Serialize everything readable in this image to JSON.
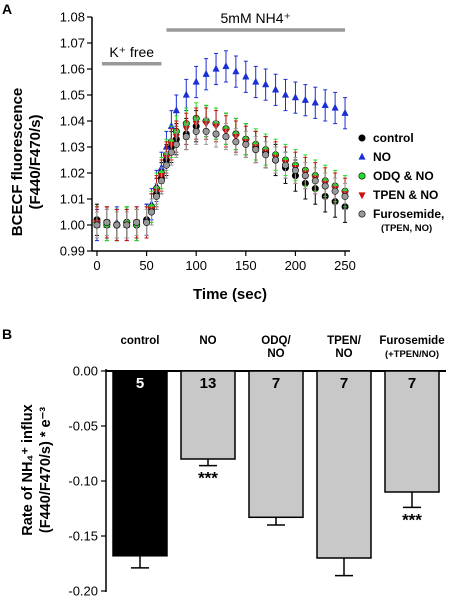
{
  "chart_data": [
    {
      "panel": "A",
      "type": "scatter",
      "xlabel": "Time (sec)",
      "ylabel_lines": [
        "BCECF fluorescence",
        "(F440/F470/s)"
      ],
      "xlim": [
        -5,
        255
      ],
      "ylim": [
        0.99,
        1.08
      ],
      "xticks": [
        0,
        50,
        100,
        150,
        200,
        250
      ],
      "yticks": [
        0.99,
        1.0,
        1.01,
        1.02,
        1.03,
        1.04,
        1.05,
        1.06,
        1.07,
        1.08
      ],
      "annotations": [
        {
          "text": "K⁺ free",
          "x_start": 5,
          "x_end": 65,
          "y": 1.062
        },
        {
          "text": "5mM NH4⁺",
          "x_start": 70,
          "x_end": 250,
          "y": 1.075
        }
      ],
      "legend_position": "right",
      "series": [
        {
          "name": "control",
          "color": "#000000",
          "marker": "circle",
          "error": 0.006,
          "points": [
            [
              0,
              1.002
            ],
            [
              10,
              1.001
            ],
            [
              20,
              1.0
            ],
            [
              30,
              1.001
            ],
            [
              40,
              1.0
            ],
            [
              50,
              1.002
            ],
            [
              55,
              1.006
            ],
            [
              60,
              1.012
            ],
            [
              65,
              1.018
            ],
            [
              70,
              1.025
            ],
            [
              75,
              1.03
            ],
            [
              80,
              1.033
            ],
            [
              90,
              1.035
            ],
            [
              100,
              1.038
            ],
            [
              110,
              1.04
            ],
            [
              120,
              1.039
            ],
            [
              130,
              1.037
            ],
            [
              140,
              1.035
            ],
            [
              150,
              1.033
            ],
            [
              160,
              1.03
            ],
            [
              170,
              1.028
            ],
            [
              180,
              1.025
            ],
            [
              190,
              1.022
            ],
            [
              200,
              1.019
            ],
            [
              210,
              1.016
            ],
            [
              220,
              1.014
            ],
            [
              230,
              1.011
            ],
            [
              240,
              1.009
            ],
            [
              250,
              1.007
            ]
          ]
        },
        {
          "name": "NO",
          "color": "#1a2fd6",
          "marker": "triangle-up",
          "error": 0.006,
          "points": [
            [
              0,
              1.0
            ],
            [
              10,
              1.0
            ],
            [
              20,
              1.001
            ],
            [
              30,
              1.0
            ],
            [
              40,
              1.001
            ],
            [
              50,
              1.002
            ],
            [
              55,
              1.008
            ],
            [
              60,
              1.015
            ],
            [
              65,
              1.022
            ],
            [
              70,
              1.03
            ],
            [
              75,
              1.038
            ],
            [
              80,
              1.044
            ],
            [
              90,
              1.05
            ],
            [
              100,
              1.055
            ],
            [
              110,
              1.058
            ],
            [
              120,
              1.06
            ],
            [
              130,
              1.061
            ],
            [
              140,
              1.059
            ],
            [
              150,
              1.057
            ],
            [
              160,
              1.055
            ],
            [
              170,
              1.054
            ],
            [
              180,
              1.052
            ],
            [
              190,
              1.05
            ],
            [
              200,
              1.049
            ],
            [
              210,
              1.048
            ],
            [
              220,
              1.047
            ],
            [
              230,
              1.046
            ],
            [
              240,
              1.045
            ],
            [
              250,
              1.043
            ]
          ]
        },
        {
          "name": "ODQ & NO",
          "color": "#22dd22",
          "marker": "circle",
          "error": 0.006,
          "points": [
            [
              0,
              1.001
            ],
            [
              10,
              1.0
            ],
            [
              20,
              1.0
            ],
            [
              30,
              1.001
            ],
            [
              40,
              1.0
            ],
            [
              50,
              1.001
            ],
            [
              55,
              1.007
            ],
            [
              60,
              1.014
            ],
            [
              65,
              1.02
            ],
            [
              70,
              1.027
            ],
            [
              75,
              1.032
            ],
            [
              80,
              1.036
            ],
            [
              90,
              1.039
            ],
            [
              100,
              1.041
            ],
            [
              110,
              1.04
            ],
            [
              120,
              1.039
            ],
            [
              130,
              1.037
            ],
            [
              140,
              1.035
            ],
            [
              150,
              1.033
            ],
            [
              160,
              1.031
            ],
            [
              170,
              1.029
            ],
            [
              180,
              1.027
            ],
            [
              190,
              1.025
            ],
            [
              200,
              1.023
            ],
            [
              210,
              1.021
            ],
            [
              220,
              1.019
            ],
            [
              230,
              1.017
            ],
            [
              240,
              1.015
            ],
            [
              250,
              1.013
            ]
          ]
        },
        {
          "name": "TPEN & NO",
          "color": "#cc1111",
          "marker": "triangle-down",
          "error": 0.006,
          "points": [
            [
              0,
              1.001
            ],
            [
              10,
              1.001
            ],
            [
              20,
              1.0
            ],
            [
              30,
              1.0
            ],
            [
              40,
              1.001
            ],
            [
              50,
              1.001
            ],
            [
              55,
              1.006
            ],
            [
              60,
              1.013
            ],
            [
              65,
              1.019
            ],
            [
              70,
              1.026
            ],
            [
              75,
              1.031
            ],
            [
              80,
              1.034
            ],
            [
              90,
              1.037
            ],
            [
              100,
              1.039
            ],
            [
              110,
              1.039
            ],
            [
              120,
              1.038
            ],
            [
              130,
              1.036
            ],
            [
              140,
              1.034
            ],
            [
              150,
              1.032
            ],
            [
              160,
              1.03
            ],
            [
              170,
              1.028
            ],
            [
              180,
              1.026
            ],
            [
              190,
              1.024
            ],
            [
              200,
              1.022
            ],
            [
              210,
              1.02
            ],
            [
              220,
              1.018
            ],
            [
              230,
              1.016
            ],
            [
              240,
              1.014
            ],
            [
              250,
              1.012
            ]
          ]
        },
        {
          "name": "Furosemide,",
          "name_sub": "(TPEN, NO)",
          "color": "#999999",
          "marker": "circle",
          "error": 0.005,
          "points": [
            [
              0,
              1.0
            ],
            [
              10,
              1.001
            ],
            [
              20,
              1.0
            ],
            [
              30,
              1.0
            ],
            [
              40,
              1.001
            ],
            [
              50,
              1.001
            ],
            [
              55,
              1.005
            ],
            [
              60,
              1.011
            ],
            [
              65,
              1.017
            ],
            [
              70,
              1.023
            ],
            [
              75,
              1.028
            ],
            [
              80,
              1.031
            ],
            [
              90,
              1.034
            ],
            [
              100,
              1.036
            ],
            [
              110,
              1.036
            ],
            [
              120,
              1.035
            ],
            [
              130,
              1.034
            ],
            [
              140,
              1.032
            ],
            [
              150,
              1.031
            ],
            [
              160,
              1.029
            ],
            [
              170,
              1.027
            ],
            [
              180,
              1.025
            ],
            [
              190,
              1.023
            ],
            [
              200,
              1.021
            ],
            [
              210,
              1.019
            ],
            [
              220,
              1.017
            ],
            [
              230,
              1.015
            ],
            [
              240,
              1.013
            ],
            [
              250,
              1.011
            ]
          ]
        }
      ]
    },
    {
      "panel": "B",
      "type": "bar",
      "ylabel_lines": [
        "Rate of NH₄⁺ influx",
        "(F440/F470/s) * e⁻³"
      ],
      "ylim": [
        -0.2,
        0.0
      ],
      "yticks": [
        0.0,
        -0.05,
        -0.1,
        -0.15,
        -0.2
      ],
      "ytick_labels": [
        "0.00",
        "-0.05",
        "-0.10",
        "-0.15",
        "-0.20"
      ],
      "categories": [
        {
          "lines": [
            "control"
          ]
        },
        {
          "lines": [
            "NO"
          ]
        },
        {
          "lines": [
            "ODQ/",
            "NO"
          ]
        },
        {
          "lines": [
            "TPEN/",
            "NO"
          ]
        },
        {
          "lines": [
            "Furosemide",
            "(+TPEN/NO)"
          ]
        }
      ],
      "values": [
        -0.168,
        -0.08,
        -0.133,
        -0.17,
        -0.11
      ],
      "errors": [
        0.011,
        0.006,
        0.007,
        0.016,
        0.014
      ],
      "n_labels": [
        "5",
        "13",
        "7",
        "7",
        "7"
      ],
      "significance": [
        "",
        "***",
        "",
        "",
        "***"
      ],
      "colors": [
        "#000000",
        "#c8c8c8",
        "#c8c8c8",
        "#c8c8c8",
        "#c8c8c8"
      ]
    }
  ],
  "panel_labels": [
    "A",
    "B"
  ],
  "legend_a": [
    {
      "label": "control"
    },
    {
      "label": "NO"
    },
    {
      "label": "ODQ & NO"
    },
    {
      "label": "TPEN & NO"
    },
    {
      "label": "Furosemide,",
      "sub": "(TPEN, NO)"
    }
  ]
}
